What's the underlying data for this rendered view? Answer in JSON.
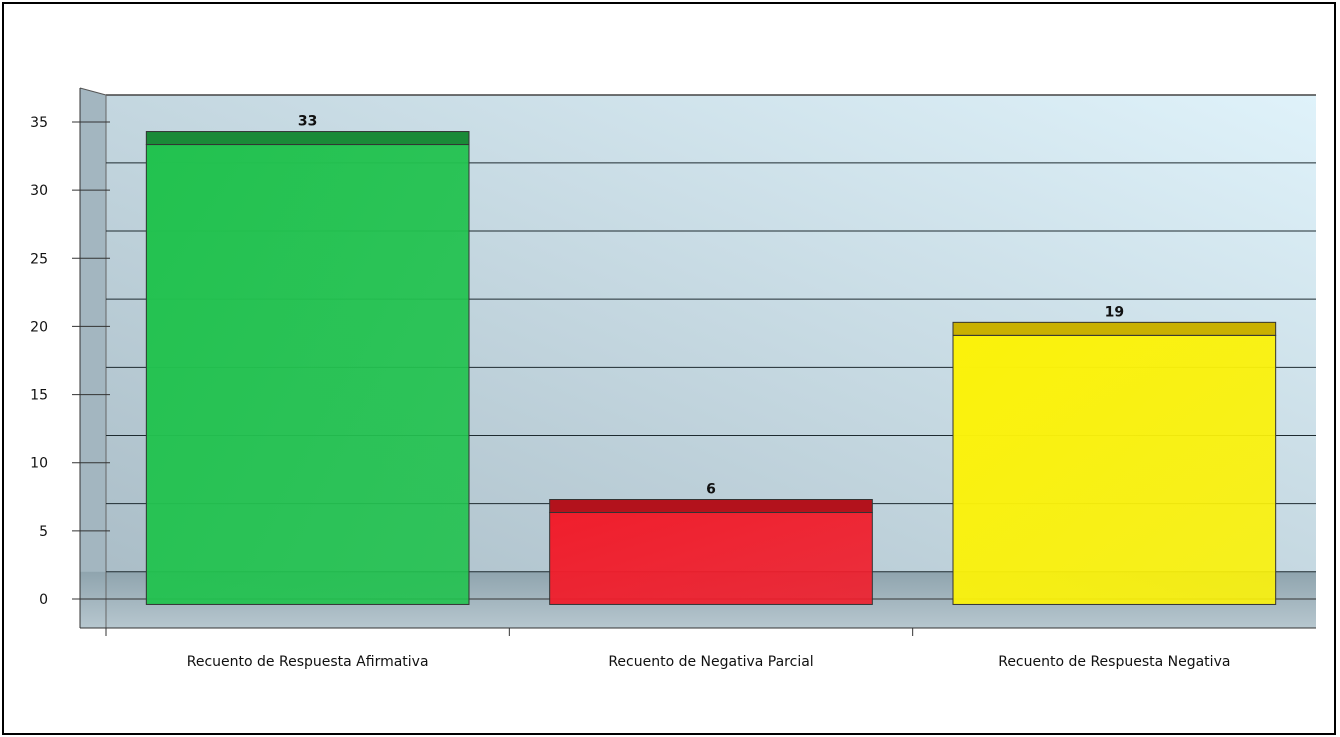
{
  "chart_data": {
    "type": "bar",
    "categories": [
      "Recuento de Respuesta Afirmativa",
      "Recuento de Negativa Parcial",
      "Recuento de Respuesta Negativa"
    ],
    "values": [
      33,
      6,
      19
    ],
    "data_labels": [
      "33",
      "6",
      "19"
    ],
    "ylim": [
      0,
      35
    ],
    "yticks": [
      "0",
      "5",
      "10",
      "15",
      "20",
      "25",
      "30",
      "35"
    ],
    "grid": true,
    "legend": "none",
    "colors": [
      "#22c24f",
      "#f01e2c",
      "#fbf20a"
    ],
    "top_colors": [
      "#1a8a38",
      "#b3121c",
      "#c9b000"
    ],
    "background_colors": [
      "#a9bcc6",
      "#dff2fa"
    ]
  }
}
